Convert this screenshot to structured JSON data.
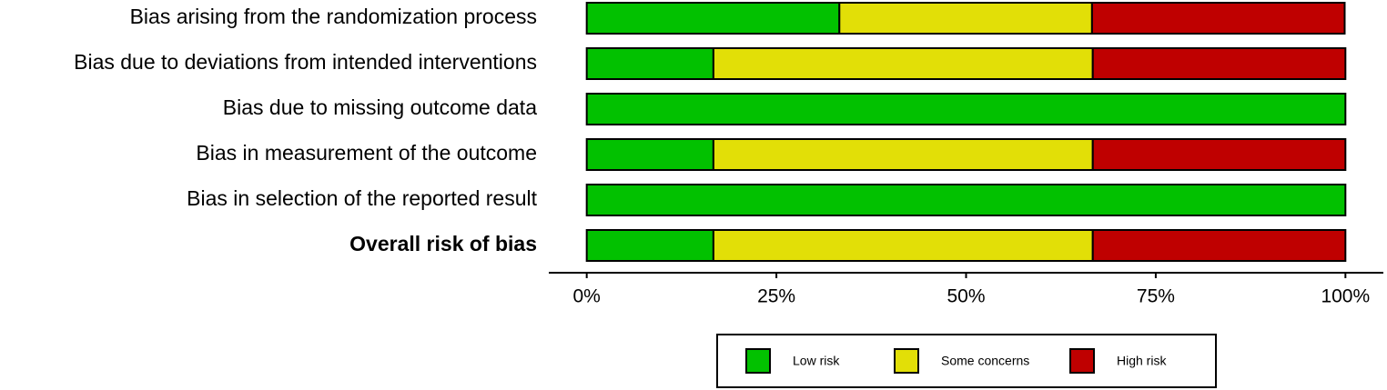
{
  "chart_data": {
    "type": "stacked_bar_horizontal",
    "categories": [
      "Bias arising from the randomization process",
      "Bias due to deviations from intended interventions",
      "Bias due to missing outcome data",
      "Bias in measurement of the outcome",
      "Bias in selection of the reported result",
      "Overall risk of bias"
    ],
    "series": [
      {
        "name": "Low risk",
        "color": "#02c100",
        "values": [
          33.3,
          16.7,
          100,
          16.7,
          100,
          16.7
        ]
      },
      {
        "name": "Some concerns",
        "color": "#e2df07",
        "values": [
          33.3,
          50,
          0,
          50,
          0,
          50
        ]
      },
      {
        "name": "High risk",
        "color": "#bf0000",
        "values": [
          33.3,
          33.3,
          0,
          33.3,
          0,
          33.3
        ]
      }
    ],
    "xlim": [
      -5,
      105
    ],
    "xticks": [
      {
        "value": 0,
        "label": "0%"
      },
      {
        "value": 25,
        "label": "25%"
      },
      {
        "value": 50,
        "label": "50%"
      },
      {
        "value": 75,
        "label": "75%"
      },
      {
        "value": 100,
        "label": "100%"
      }
    ],
    "legend": "bottom"
  }
}
